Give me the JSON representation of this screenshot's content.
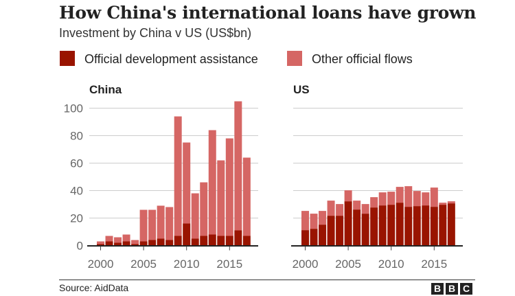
{
  "chart_data": [
    {
      "type": "bar",
      "stacked": true,
      "title": "China",
      "categories": [
        2000,
        2001,
        2002,
        2003,
        2004,
        2005,
        2006,
        2007,
        2008,
        2009,
        2010,
        2011,
        2012,
        2013,
        2014,
        2015,
        2016,
        2017
      ],
      "series": [
        {
          "name": "Official development assistance",
          "values": [
            1,
            3,
            2,
            3,
            1,
            3,
            4,
            5,
            4,
            7,
            16,
            5,
            7,
            8,
            7,
            7,
            11,
            7
          ]
        },
        {
          "name": "Other official flows",
          "values": [
            2,
            4,
            4,
            5,
            3,
            23,
            22,
            24,
            24,
            87,
            59,
            33,
            39,
            76,
            55,
            71,
            94,
            57
          ]
        }
      ],
      "ylim": [
        0,
        105
      ],
      "yticks": [
        0,
        20,
        40,
        60,
        80,
        100
      ],
      "xticks": [
        2000,
        2005,
        2010,
        2015
      ],
      "grid": true
    },
    {
      "type": "bar",
      "stacked": true,
      "title": "US",
      "categories": [
        2000,
        2001,
        2002,
        2003,
        2004,
        2005,
        2006,
        2007,
        2008,
        2009,
        2010,
        2011,
        2012,
        2013,
        2014,
        2015,
        2016,
        2017
      ],
      "series": [
        {
          "name": "Official development assistance",
          "values": [
            11.2,
            12.2,
            15.2,
            21.7,
            21.7,
            32.2,
            26.2,
            23.2,
            27.7,
            29.2,
            29.7,
            31.2,
            28.2,
            28.7,
            29.2,
            28.2,
            29.7,
            30.7
          ]
        },
        {
          "name": "Other official flows",
          "values": [
            14,
            11,
            10,
            11,
            8.5,
            8,
            6.5,
            7,
            7.5,
            9.5,
            9.5,
            11.5,
            15,
            11,
            9.5,
            14,
            1.5,
            1.5
          ]
        }
      ],
      "ylim": [
        0,
        105
      ],
      "yticks": [
        0,
        20,
        40,
        60,
        80,
        100
      ],
      "xticks": [
        2000,
        2005,
        2010,
        2015
      ],
      "grid": true
    }
  ],
  "title": "How China's international loans have grown",
  "subtitle": "Investment by China v US (US$bn)",
  "legend": [
    {
      "label": "Official development assistance",
      "color": "#991400"
    },
    {
      "label": "Other official flows",
      "color": "#d56664"
    }
  ],
  "source": "Source: AidData",
  "logo": "BBC"
}
